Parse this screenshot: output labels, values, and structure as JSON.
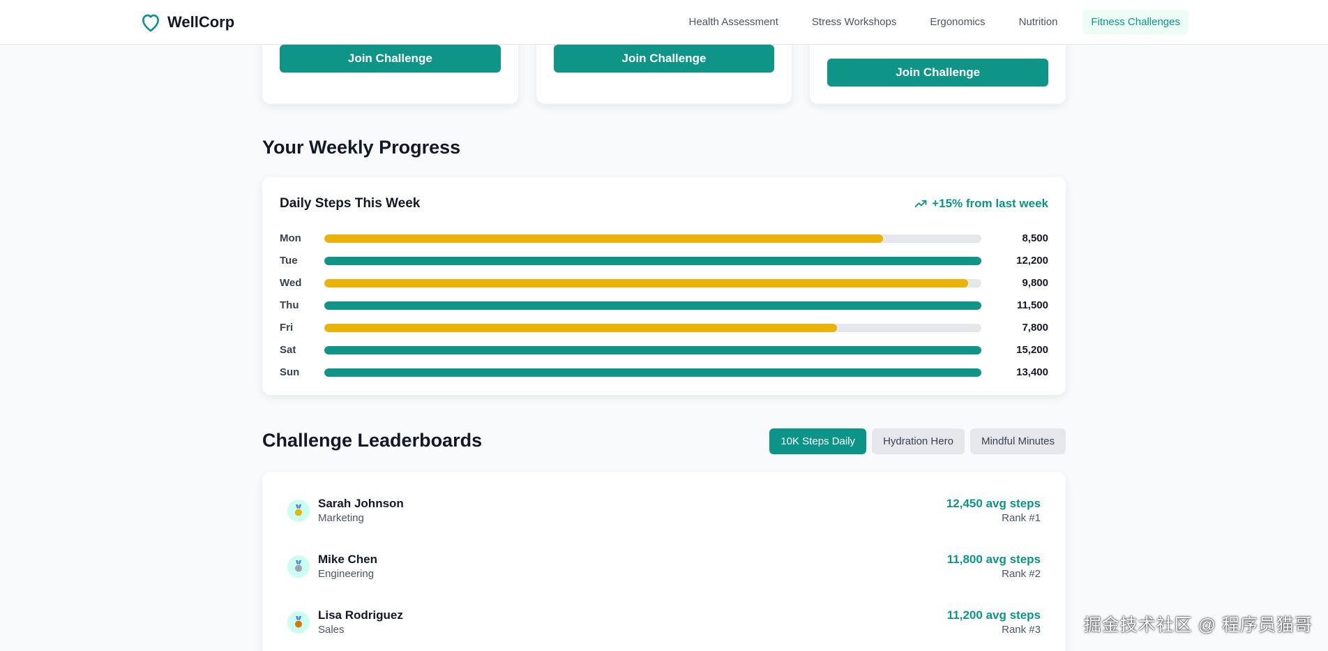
{
  "nav": {
    "brand": "WellCorp",
    "links": [
      {
        "label": "Health Assessment",
        "active": false
      },
      {
        "label": "Stress Workshops",
        "active": false
      },
      {
        "label": "Ergonomics",
        "active": false
      },
      {
        "label": "Nutrition",
        "active": false
      },
      {
        "label": "Fitness Challenges",
        "active": true
      }
    ]
  },
  "challenge_cards": [
    {
      "button_label": "Join Challenge"
    },
    {
      "button_label": "Join Challenge"
    },
    {
      "button_label": "Join Challenge"
    }
  ],
  "weekly_progress": {
    "section_title": "Your Weekly Progress",
    "card_title": "Daily Steps This Week",
    "trend_text": "+15% from last week",
    "goal_steps": 10000,
    "colors": {
      "above_goal": "#0f9488",
      "below_goal": "#eab308",
      "track": "#e5e7eb"
    },
    "days": [
      {
        "day": "Mon",
        "steps": 8500,
        "label": "8,500"
      },
      {
        "day": "Tue",
        "steps": 12200,
        "label": "12,200"
      },
      {
        "day": "Wed",
        "steps": 9800,
        "label": "9,800"
      },
      {
        "day": "Thu",
        "steps": 11500,
        "label": "11,500"
      },
      {
        "day": "Fri",
        "steps": 7800,
        "label": "7,800"
      },
      {
        "day": "Sat",
        "steps": 15200,
        "label": "15,200"
      },
      {
        "day": "Sun",
        "steps": 13400,
        "label": "13,400"
      }
    ]
  },
  "leaderboards": {
    "section_title": "Challenge Leaderboards",
    "tabs": [
      {
        "label": "10K Steps Daily",
        "active": true
      },
      {
        "label": "Hydration Hero",
        "active": false
      },
      {
        "label": "Mindful Minutes",
        "active": false
      }
    ],
    "entries": [
      {
        "name": "Sarah Johnson",
        "department": "Marketing",
        "stat": "12,450 avg steps",
        "rank": "Rank #1",
        "medal_color": "#eab308"
      },
      {
        "name": "Mike Chen",
        "department": "Engineering",
        "stat": "11,800 avg steps",
        "rank": "Rank #2",
        "medal_color": "#9ca3af"
      },
      {
        "name": "Lisa Rodriguez",
        "department": "Sales",
        "stat": "11,200 avg steps",
        "rank": "Rank #3",
        "medal_color": "#d97706"
      }
    ]
  },
  "watermark": "掘金技术社区 @ 程序员猫哥"
}
